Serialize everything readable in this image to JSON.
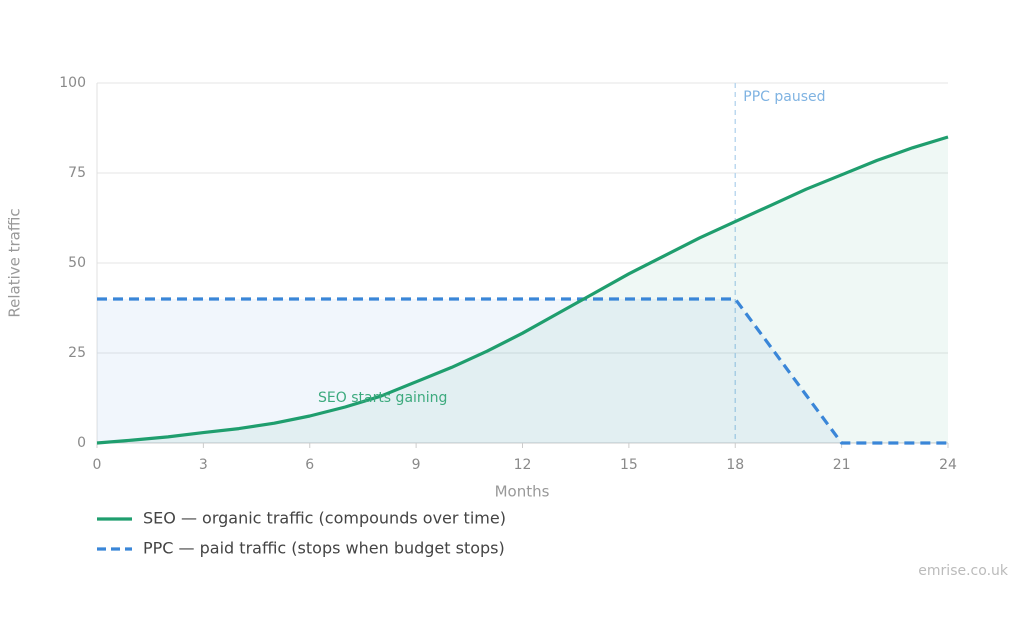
{
  "chart_data": {
    "type": "line",
    "x": [
      0,
      1,
      2,
      3,
      4,
      5,
      6,
      7,
      8,
      9,
      10,
      11,
      12,
      13,
      14,
      15,
      16,
      17,
      18,
      19,
      20,
      21,
      22,
      23,
      24
    ],
    "series": [
      {
        "name": "SEO — organic traffic (compounds over time)",
        "color": "#1f9e6e",
        "dash": false,
        "values": [
          0,
          0.8,
          1.7,
          2.9,
          4,
          5.5,
          7.5,
          10,
          13,
          17,
          21,
          25.5,
          30.5,
          36,
          41.5,
          47,
          52,
          57,
          61.5,
          66,
          70.5,
          74.5,
          78.5,
          82,
          85
        ]
      },
      {
        "name": "PPC — paid traffic (stops when budget stops)",
        "color": "#3a86d8",
        "dash": true,
        "values": [
          40,
          40,
          40,
          40,
          40,
          40,
          40,
          40,
          40,
          40,
          40,
          40,
          40,
          40,
          40,
          40,
          40,
          40,
          40,
          26.7,
          13.3,
          0,
          0,
          0,
          0
        ]
      }
    ],
    "xlabel": "Months",
    "ylabel": "Relative traffic",
    "xlim": [
      0,
      24
    ],
    "ylim": [
      0,
      100
    ],
    "xticks": [
      0,
      3,
      6,
      9,
      12,
      15,
      18,
      21,
      24
    ],
    "yticks": [
      0,
      25,
      50,
      75,
      100
    ],
    "grid": true,
    "area": true,
    "annotations": [
      {
        "text": "PPC paused",
        "x": 18
      },
      {
        "text": "SEO starts gaining"
      }
    ],
    "source": "emrise.co.uk"
  }
}
